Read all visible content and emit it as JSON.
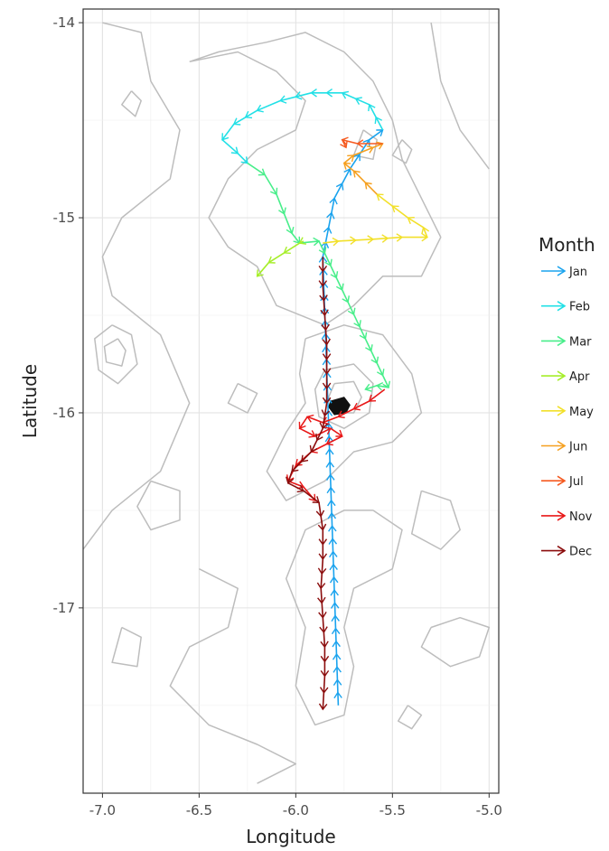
{
  "chart_data": {
    "type": "line",
    "xlabel": "Longitude",
    "ylabel": "Latitude",
    "xlim": [
      -7.1,
      -4.95
    ],
    "ylim": [
      -17.95,
      -13.93
    ],
    "x_ticks": [
      {
        "value": -7.0,
        "label": "-7.0"
      },
      {
        "value": -6.5,
        "label": "-6.5"
      },
      {
        "value": -6.0,
        "label": "-6.0"
      },
      {
        "value": -5.5,
        "label": "-5.5"
      },
      {
        "value": -5.0,
        "label": "-5.0"
      }
    ],
    "y_ticks": [
      {
        "value": -14,
        "label": "-14"
      },
      {
        "value": -15,
        "label": "-15"
      },
      {
        "value": -16,
        "label": "-16"
      },
      {
        "value": -17,
        "label": "-17"
      }
    ],
    "grid": true,
    "legend": {
      "title": "Month",
      "placement": "right",
      "entries": [
        {
          "label": "Jan",
          "color": "#1aa3ee"
        },
        {
          "label": "Feb",
          "color": "#22e0e6"
        },
        {
          "label": "Mar",
          "color": "#48ee8a"
        },
        {
          "label": "Apr",
          "color": "#a6ee2a"
        },
        {
          "label": "May",
          "color": "#f2e02a"
        },
        {
          "label": "Jun",
          "color": "#f5a020"
        },
        {
          "label": "Jul",
          "color": "#f55a20"
        },
        {
          "label": "Nov",
          "color": "#e81818"
        },
        {
          "label": "Dec",
          "color": "#8b0d0d"
        }
      ]
    },
    "series": [
      {
        "name": "Jan",
        "color": "#1aa3ee",
        "points": [
          [
            -5.78,
            -17.5
          ],
          [
            -5.86,
            -15.2
          ],
          [
            -5.8,
            -14.9
          ],
          [
            -5.72,
            -14.75
          ],
          [
            -5.62,
            -14.6
          ],
          [
            -5.55,
            -14.55
          ]
        ]
      },
      {
        "name": "Feb",
        "color": "#22e0e6",
        "points": [
          [
            -5.55,
            -14.55
          ],
          [
            -5.62,
            -14.42
          ],
          [
            -5.76,
            -14.36
          ],
          [
            -5.92,
            -14.36
          ],
          [
            -6.08,
            -14.4
          ],
          [
            -6.2,
            -14.45
          ],
          [
            -6.32,
            -14.52
          ],
          [
            -6.38,
            -14.6
          ],
          [
            -6.3,
            -14.67
          ],
          [
            -6.25,
            -14.72
          ]
        ]
      },
      {
        "name": "Mar",
        "color": "#48ee8a",
        "points": [
          [
            -6.25,
            -14.72
          ],
          [
            -6.16,
            -14.78
          ],
          [
            -6.1,
            -14.88
          ],
          [
            -6.06,
            -14.98
          ],
          [
            -6.02,
            -15.08
          ],
          [
            -5.98,
            -15.13
          ],
          [
            -5.88,
            -15.12
          ],
          [
            -5.52,
            -15.87
          ],
          [
            -5.58,
            -15.86
          ],
          [
            -5.64,
            -15.88
          ]
        ]
      },
      {
        "name": "Apr",
        "color": "#a6ee2a",
        "points": [
          [
            -5.96,
            -15.12
          ],
          [
            -5.98,
            -15.13
          ],
          [
            -6.06,
            -15.18
          ],
          [
            -6.14,
            -15.23
          ],
          [
            -6.2,
            -15.3
          ]
        ]
      },
      {
        "name": "May",
        "color": "#f2e02a",
        "points": [
          [
            -5.86,
            -15.13
          ],
          [
            -5.78,
            -15.12
          ],
          [
            -5.6,
            -15.11
          ],
          [
            -5.45,
            -15.1
          ],
          [
            -5.32,
            -15.1
          ],
          [
            -5.34,
            -15.05
          ],
          [
            -5.42,
            -15.0
          ],
          [
            -5.5,
            -14.94
          ],
          [
            -5.58,
            -14.88
          ]
        ]
      },
      {
        "name": "Jun",
        "color": "#f5a020",
        "points": [
          [
            -5.58,
            -14.88
          ],
          [
            -5.64,
            -14.82
          ],
          [
            -5.7,
            -14.76
          ],
          [
            -5.75,
            -14.72
          ],
          [
            -5.7,
            -14.68
          ],
          [
            -5.6,
            -14.64
          ],
          [
            -5.55,
            -14.62
          ]
        ]
      },
      {
        "name": "Jul",
        "color": "#f55a20",
        "points": [
          [
            -5.55,
            -14.62
          ],
          [
            -5.68,
            -14.62
          ],
          [
            -5.76,
            -14.6
          ],
          [
            -5.74,
            -14.64
          ]
        ]
      },
      {
        "name": "Nov",
        "color": "#e81818",
        "points": [
          [
            -5.54,
            -15.88
          ],
          [
            -5.62,
            -15.94
          ],
          [
            -5.7,
            -15.98
          ],
          [
            -5.78,
            -16.02
          ],
          [
            -5.86,
            -16.05
          ],
          [
            -5.94,
            -16.02
          ],
          [
            -5.98,
            -16.08
          ],
          [
            -5.9,
            -16.12
          ],
          [
            -5.82,
            -16.08
          ],
          [
            -5.76,
            -16.12
          ],
          [
            -5.84,
            -16.16
          ],
          [
            -5.92,
            -16.2
          ],
          [
            -6.0,
            -16.27
          ],
          [
            -6.04,
            -16.35
          ],
          [
            -5.96,
            -16.38
          ],
          [
            -5.9,
            -16.45
          ]
        ]
      },
      {
        "name": "Dec",
        "color": "#8b0d0d",
        "points": [
          [
            -5.86,
            -15.2
          ],
          [
            -5.86,
            -15.35
          ],
          [
            -5.85,
            -15.5
          ],
          [
            -5.84,
            -15.65
          ],
          [
            -5.84,
            -15.8
          ],
          [
            -5.84,
            -15.95
          ],
          [
            -5.86,
            -16.08
          ],
          [
            -5.92,
            -16.2
          ],
          [
            -6.02,
            -16.3
          ],
          [
            -6.04,
            -16.36
          ],
          [
            -5.96,
            -16.4
          ],
          [
            -5.88,
            -16.46
          ],
          [
            -5.86,
            -16.6
          ],
          [
            -5.86,
            -16.75
          ],
          [
            -5.87,
            -16.9
          ],
          [
            -5.86,
            -17.05
          ],
          [
            -5.85,
            -17.2
          ],
          [
            -5.85,
            -17.35
          ],
          [
            -5.86,
            -17.52
          ]
        ]
      }
    ],
    "contours": [
      [
        [
          -7.0,
          -14.0
        ],
        [
          -6.8,
          -14.05
        ],
        [
          -6.75,
          -14.3
        ],
        [
          -6.6,
          -14.55
        ],
        [
          -6.65,
          -14.8
        ],
        [
          -6.9,
          -15.0
        ],
        [
          -7.0,
          -15.2
        ],
        [
          -6.95,
          -15.4
        ],
        [
          -6.7,
          -15.6
        ],
        [
          -6.55,
          -15.95
        ],
        [
          -6.7,
          -16.3
        ],
        [
          -6.95,
          -16.5
        ],
        [
          -7.1,
          -16.7
        ]
      ],
      [
        [
          -6.55,
          -14.2
        ],
        [
          -6.3,
          -14.15
        ],
        [
          -6.1,
          -14.25
        ],
        [
          -5.95,
          -14.4
        ],
        [
          -6.0,
          -14.55
        ],
        [
          -6.2,
          -14.65
        ],
        [
          -6.35,
          -14.8
        ],
        [
          -6.45,
          -15.0
        ],
        [
          -6.35,
          -15.15
        ],
        [
          -6.2,
          -15.25
        ],
        [
          -6.1,
          -15.45
        ],
        [
          -5.85,
          -15.55
        ],
        [
          -5.7,
          -15.45
        ],
        [
          -5.55,
          -15.3
        ],
        [
          -5.35,
          -15.3
        ],
        [
          -5.25,
          -15.1
        ],
        [
          -5.35,
          -14.9
        ],
        [
          -5.45,
          -14.7
        ],
        [
          -5.5,
          -14.5
        ],
        [
          -5.6,
          -14.3
        ],
        [
          -5.75,
          -14.15
        ],
        [
          -5.95,
          -14.05
        ],
        [
          -6.15,
          -14.1
        ],
        [
          -6.4,
          -14.15
        ],
        [
          -6.55,
          -14.2
        ]
      ],
      [
        [
          -5.3,
          -14.0
        ],
        [
          -5.25,
          -14.3
        ],
        [
          -5.15,
          -14.55
        ],
        [
          -5.0,
          -14.75
        ]
      ],
      [
        [
          -6.95,
          -15.55
        ],
        [
          -6.85,
          -15.6
        ],
        [
          -6.82,
          -15.75
        ],
        [
          -6.92,
          -15.85
        ],
        [
          -7.02,
          -15.78
        ],
        [
          -7.04,
          -15.62
        ],
        [
          -6.95,
          -15.55
        ]
      ],
      [
        [
          -6.92,
          -15.62
        ],
        [
          -6.88,
          -15.68
        ],
        [
          -6.9,
          -15.76
        ],
        [
          -6.98,
          -15.74
        ],
        [
          -6.99,
          -15.66
        ],
        [
          -6.92,
          -15.62
        ]
      ],
      [
        [
          -5.95,
          -15.62
        ],
        [
          -5.75,
          -15.55
        ],
        [
          -5.55,
          -15.6
        ],
        [
          -5.4,
          -15.8
        ],
        [
          -5.35,
          -16.0
        ],
        [
          -5.5,
          -16.15
        ],
        [
          -5.7,
          -16.2
        ],
        [
          -5.85,
          -16.35
        ],
        [
          -6.05,
          -16.45
        ],
        [
          -6.15,
          -16.3
        ],
        [
          -6.05,
          -16.1
        ],
        [
          -5.95,
          -15.95
        ],
        [
          -5.98,
          -15.8
        ],
        [
          -5.95,
          -15.62
        ]
      ],
      [
        [
          -5.85,
          -15.78
        ],
        [
          -5.7,
          -15.75
        ],
        [
          -5.6,
          -15.85
        ],
        [
          -5.62,
          -16.0
        ],
        [
          -5.75,
          -16.08
        ],
        [
          -5.88,
          -16.02
        ],
        [
          -5.9,
          -15.88
        ],
        [
          -5.85,
          -15.78
        ]
      ],
      [
        [
          -5.8,
          -15.85
        ],
        [
          -5.7,
          -15.84
        ],
        [
          -5.66,
          -15.92
        ],
        [
          -5.7,
          -16.0
        ],
        [
          -5.8,
          -16.0
        ],
        [
          -5.83,
          -15.92
        ],
        [
          -5.8,
          -15.85
        ]
      ],
      [
        [
          -5.6,
          -16.5
        ],
        [
          -5.45,
          -16.6
        ],
        [
          -5.5,
          -16.8
        ],
        [
          -5.7,
          -16.9
        ],
        [
          -5.75,
          -17.1
        ],
        [
          -5.7,
          -17.3
        ],
        [
          -5.75,
          -17.55
        ],
        [
          -5.9,
          -17.6
        ],
        [
          -6.0,
          -17.4
        ],
        [
          -5.95,
          -17.1
        ],
        [
          -6.05,
          -16.85
        ],
        [
          -5.95,
          -16.6
        ],
        [
          -5.75,
          -16.5
        ],
        [
          -5.6,
          -16.5
        ]
      ],
      [
        [
          -6.5,
          -16.8
        ],
        [
          -6.3,
          -16.9
        ],
        [
          -6.35,
          -17.1
        ],
        [
          -6.55,
          -17.2
        ],
        [
          -6.65,
          -17.4
        ],
        [
          -6.45,
          -17.6
        ],
        [
          -6.2,
          -17.7
        ],
        [
          -6.0,
          -17.8
        ],
        [
          -6.2,
          -17.9
        ]
      ],
      [
        [
          -5.3,
          -17.1
        ],
        [
          -5.15,
          -17.05
        ],
        [
          -5.0,
          -17.1
        ],
        [
          -5.05,
          -17.25
        ],
        [
          -5.2,
          -17.3
        ],
        [
          -5.35,
          -17.2
        ],
        [
          -5.3,
          -17.1
        ]
      ],
      [
        [
          -6.75,
          -16.35
        ],
        [
          -6.6,
          -16.4
        ],
        [
          -6.6,
          -16.55
        ],
        [
          -6.75,
          -16.6
        ],
        [
          -6.82,
          -16.48
        ],
        [
          -6.75,
          -16.35
        ]
      ],
      [
        [
          -5.35,
          -16.4
        ],
        [
          -5.2,
          -16.45
        ],
        [
          -5.15,
          -16.6
        ],
        [
          -5.25,
          -16.7
        ],
        [
          -5.4,
          -16.62
        ],
        [
          -5.35,
          -16.4
        ]
      ],
      [
        [
          -6.9,
          -17.1
        ],
        [
          -6.8,
          -17.15
        ],
        [
          -6.82,
          -17.3
        ],
        [
          -6.95,
          -17.28
        ],
        [
          -6.9,
          -17.1
        ]
      ],
      [
        [
          -5.65,
          -14.55
        ],
        [
          -5.58,
          -14.6
        ],
        [
          -5.6,
          -14.7
        ],
        [
          -5.7,
          -14.68
        ],
        [
          -5.65,
          -14.55
        ]
      ],
      [
        [
          -6.85,
          -14.35
        ],
        [
          -6.8,
          -14.4
        ],
        [
          -6.83,
          -14.48
        ],
        [
          -6.9,
          -14.42
        ],
        [
          -6.85,
          -14.35
        ]
      ],
      [
        [
          -5.45,
          -14.6
        ],
        [
          -5.4,
          -14.65
        ],
        [
          -5.43,
          -14.72
        ],
        [
          -5.5,
          -14.68
        ],
        [
          -5.45,
          -14.6
        ]
      ],
      [
        [
          -6.3,
          -15.85
        ],
        [
          -6.2,
          -15.9
        ],
        [
          -6.25,
          -16.0
        ],
        [
          -6.35,
          -15.95
        ],
        [
          -6.3,
          -15.85
        ]
      ],
      [
        [
          -5.42,
          -17.5
        ],
        [
          -5.35,
          -17.55
        ],
        [
          -5.4,
          -17.62
        ],
        [
          -5.47,
          -17.58
        ],
        [
          -5.42,
          -17.5
        ]
      ]
    ],
    "filled_area": [
      [
        -5.82,
        -15.94
      ],
      [
        -5.75,
        -15.92
      ],
      [
        -5.72,
        -15.96
      ],
      [
        -5.74,
        -16.0
      ],
      [
        -5.8,
        -16.01
      ],
      [
        -5.83,
        -15.97
      ],
      [
        -5.82,
        -15.94
      ]
    ]
  }
}
